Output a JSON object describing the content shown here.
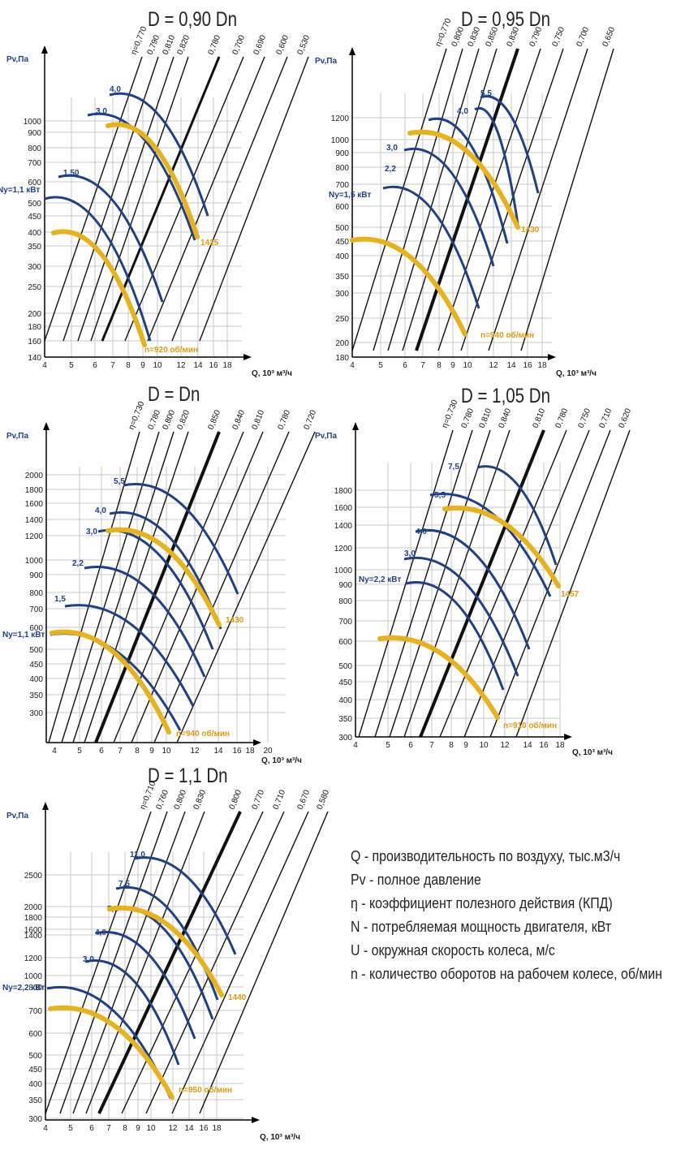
{
  "colors": {
    "grid": "#c9c9c9",
    "eta_line": "#111111",
    "power_curve": "#1f3f86",
    "speed_curve": "#e7b21b",
    "speed_label": "#e09a10",
    "power_label": "#1f3f86",
    "text": "#1a1a1a"
  },
  "legend": {
    "items": [
      "Q - производительность по воздуху, тыс.м3/ч",
      "Pv - полное давление",
      "η - коэффициент полезного действия (КПД)",
      "N - потребляемая мощность двигателя, кВт",
      "U - окружная скорость колеса, м/с",
      "n - количество оборотов на рабочем колесе, об/мин"
    ]
  },
  "chart_data": [
    {
      "type": "line",
      "title": "D = 0,90 Dn",
      "ylabel": "Pv,Па",
      "xlabel": "Q, 10³ м³/ч",
      "x_ticks": [
        "4",
        "5",
        "6",
        "7",
        "8",
        "9",
        "10",
        "12",
        "14",
        "16",
        "18"
      ],
      "y_ticks": [
        "140",
        "160",
        "180",
        "200",
        "250",
        "300",
        "350",
        "400",
        "450",
        "500",
        "600",
        "700",
        "800",
        "900",
        "1000"
      ],
      "efficiency_labels": [
        "η=0,770",
        "0,790",
        "0,810",
        "0,820",
        "0,780",
        "0,700",
        "0,690",
        "0,600",
        "0,530"
      ],
      "power_labels": [
        "4,0",
        "3,0",
        "1,50",
        "Ny=1,1 кВт"
      ],
      "speed_labels": [
        "1425",
        "n=920 об/мин"
      ]
    },
    {
      "type": "line",
      "title": "D = 0,95 Dn",
      "ylabel": "Pv,Па",
      "xlabel": "Q, 10³ м³/ч",
      "x_ticks": [
        "4",
        "5",
        "6",
        "7",
        "8",
        "9",
        "10",
        "12",
        "14",
        "16",
        "18"
      ],
      "y_ticks": [
        "180",
        "200",
        "250",
        "300",
        "350",
        "400",
        "450",
        "500",
        "600",
        "700",
        "800",
        "900",
        "1000",
        "1200"
      ],
      "efficiency_labels": [
        "η=0,770",
        "0,800",
        "0,830",
        "0,850",
        "0,830",
        "0,790",
        "0,750",
        "0,700",
        "0,650"
      ],
      "power_labels": [
        "5,5",
        "4,0",
        "3,0",
        "2,2",
        "Ny=1,5 кВт"
      ],
      "speed_labels": [
        "1430",
        "n=940 об/мин"
      ]
    },
    {
      "type": "line",
      "title": "D = Dn",
      "ylabel": "Pv,Па",
      "xlabel": "Q, 10³ м³/ч",
      "x_ticks": [
        "4",
        "5",
        "6",
        "7",
        "8",
        "9",
        "10",
        "12",
        "14",
        "16",
        "18",
        "20"
      ],
      "y_ticks": [
        "300",
        "350",
        "400",
        "450",
        "500",
        "600",
        "700",
        "800",
        "900",
        "1000",
        "1200",
        "1400",
        "1600",
        "1800",
        "2000"
      ],
      "efficiency_labels": [
        "η=0,730",
        "0,780",
        "0,800",
        "0,820",
        "0,850",
        "0,840",
        "0,810",
        "0,780",
        "0,720"
      ],
      "power_labels": [
        "5,5",
        "4,0",
        "3,0",
        "2,2",
        "1,5",
        "Ny=1,1 кВт"
      ],
      "speed_labels": [
        "1430",
        "n=940 об/мин"
      ]
    },
    {
      "type": "line",
      "title": "D = 1,05 Dn",
      "ylabel": "Pv,Па",
      "xlabel": "Q, 10³ м³/ч",
      "x_ticks": [
        "4",
        "5",
        "6",
        "7",
        "8",
        "9",
        "10",
        "12",
        "14",
        "16",
        "18"
      ],
      "y_ticks": [
        "300",
        "350",
        "400",
        "450",
        "500",
        "600",
        "700",
        "800",
        "900",
        "1000",
        "1200",
        "1400",
        "1600",
        "1800"
      ],
      "efficiency_labels": [
        "η=0,730",
        "0,780",
        "0,810",
        "0,840",
        "0,810",
        "0,780",
        "0,750",
        "0,710",
        "0,620"
      ],
      "power_labels": [
        "7,5",
        "5,5",
        "4,0",
        "3,0",
        "Ny=2,2 кВт"
      ],
      "speed_labels": [
        "1457",
        "n=910 об/мин"
      ]
    },
    {
      "type": "line",
      "title": "D = 1,1 Dn",
      "ylabel": "Pv,Па",
      "xlabel": "Q, 10³ м³/ч",
      "x_ticks": [
        "4",
        "5",
        "6",
        "7",
        "8",
        "9",
        "10",
        "12",
        "14",
        "16",
        "18"
      ],
      "y_ticks": [
        "300",
        "350",
        "400",
        "450",
        "500",
        "600",
        "700",
        "800",
        "1000",
        "1200",
        "1400",
        "1600",
        "1800",
        "2000",
        "2500"
      ],
      "efficiency_labels": [
        "η=0,710",
        "0,760",
        "0,800",
        "0,830",
        "0,800",
        "0,770",
        "0,710",
        "0,670",
        "0,580"
      ],
      "power_labels": [
        "11,0",
        "7,5",
        "5,5",
        "4,0",
        "3,0",
        "Ny=2,2 кВт"
      ],
      "speed_labels": [
        "1440",
        "n=950 об/мин"
      ]
    }
  ]
}
